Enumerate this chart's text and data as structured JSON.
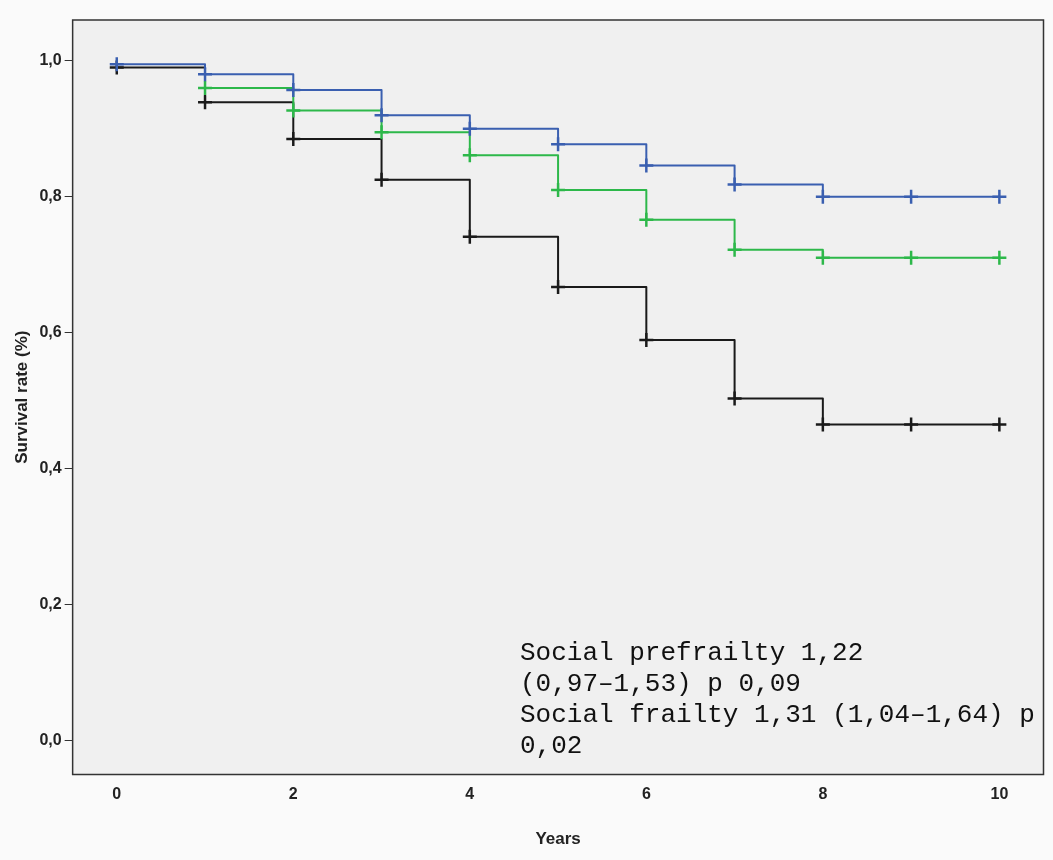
{
  "chart_data": {
    "type": "step",
    "xlabel": "Years",
    "ylabel": "Survival rate (%)",
    "x": [
      0,
      1,
      2,
      3,
      4,
      5,
      6,
      7,
      8,
      9,
      10
    ],
    "series": [
      {
        "color": "#3a5fb0",
        "values": [
          0.995,
          0.98,
          0.957,
          0.92,
          0.9,
          0.877,
          0.846,
          0.818,
          0.8,
          0.8,
          0.8
        ]
      },
      {
        "color": "#2db84a",
        "values": [
          null,
          0.96,
          0.927,
          0.895,
          0.861,
          0.81,
          0.766,
          0.722,
          0.71,
          0.71,
          0.71
        ]
      },
      {
        "color": "#1a1a1a",
        "values": [
          0.99,
          0.939,
          0.885,
          0.825,
          0.741,
          0.667,
          0.589,
          0.503,
          0.465,
          0.465,
          0.465
        ]
      }
    ],
    "xlim": [
      -0.5,
      10.5
    ],
    "ylim": [
      -0.05,
      1.06
    ],
    "xticks": [
      0,
      2,
      4,
      6,
      8,
      10
    ],
    "yticks": [
      {
        "value": 0,
        "label": "0,0"
      },
      {
        "value": 0.2,
        "label": "0,2"
      },
      {
        "value": 0.4,
        "label": "0,4"
      },
      {
        "value": 0.6,
        "label": "0,6"
      },
      {
        "value": 0.8,
        "label": "0,8"
      },
      {
        "value": 1,
        "label": "1,0"
      }
    ],
    "grid": false,
    "legend": false,
    "marker": "cross",
    "line_style": "solid",
    "annotations": [
      "Social prefrailty 1,22 (0,97–1,53) p 0,09",
      "Social frailty 1,31 (1,04–1,64) p 0,02"
    ]
  }
}
